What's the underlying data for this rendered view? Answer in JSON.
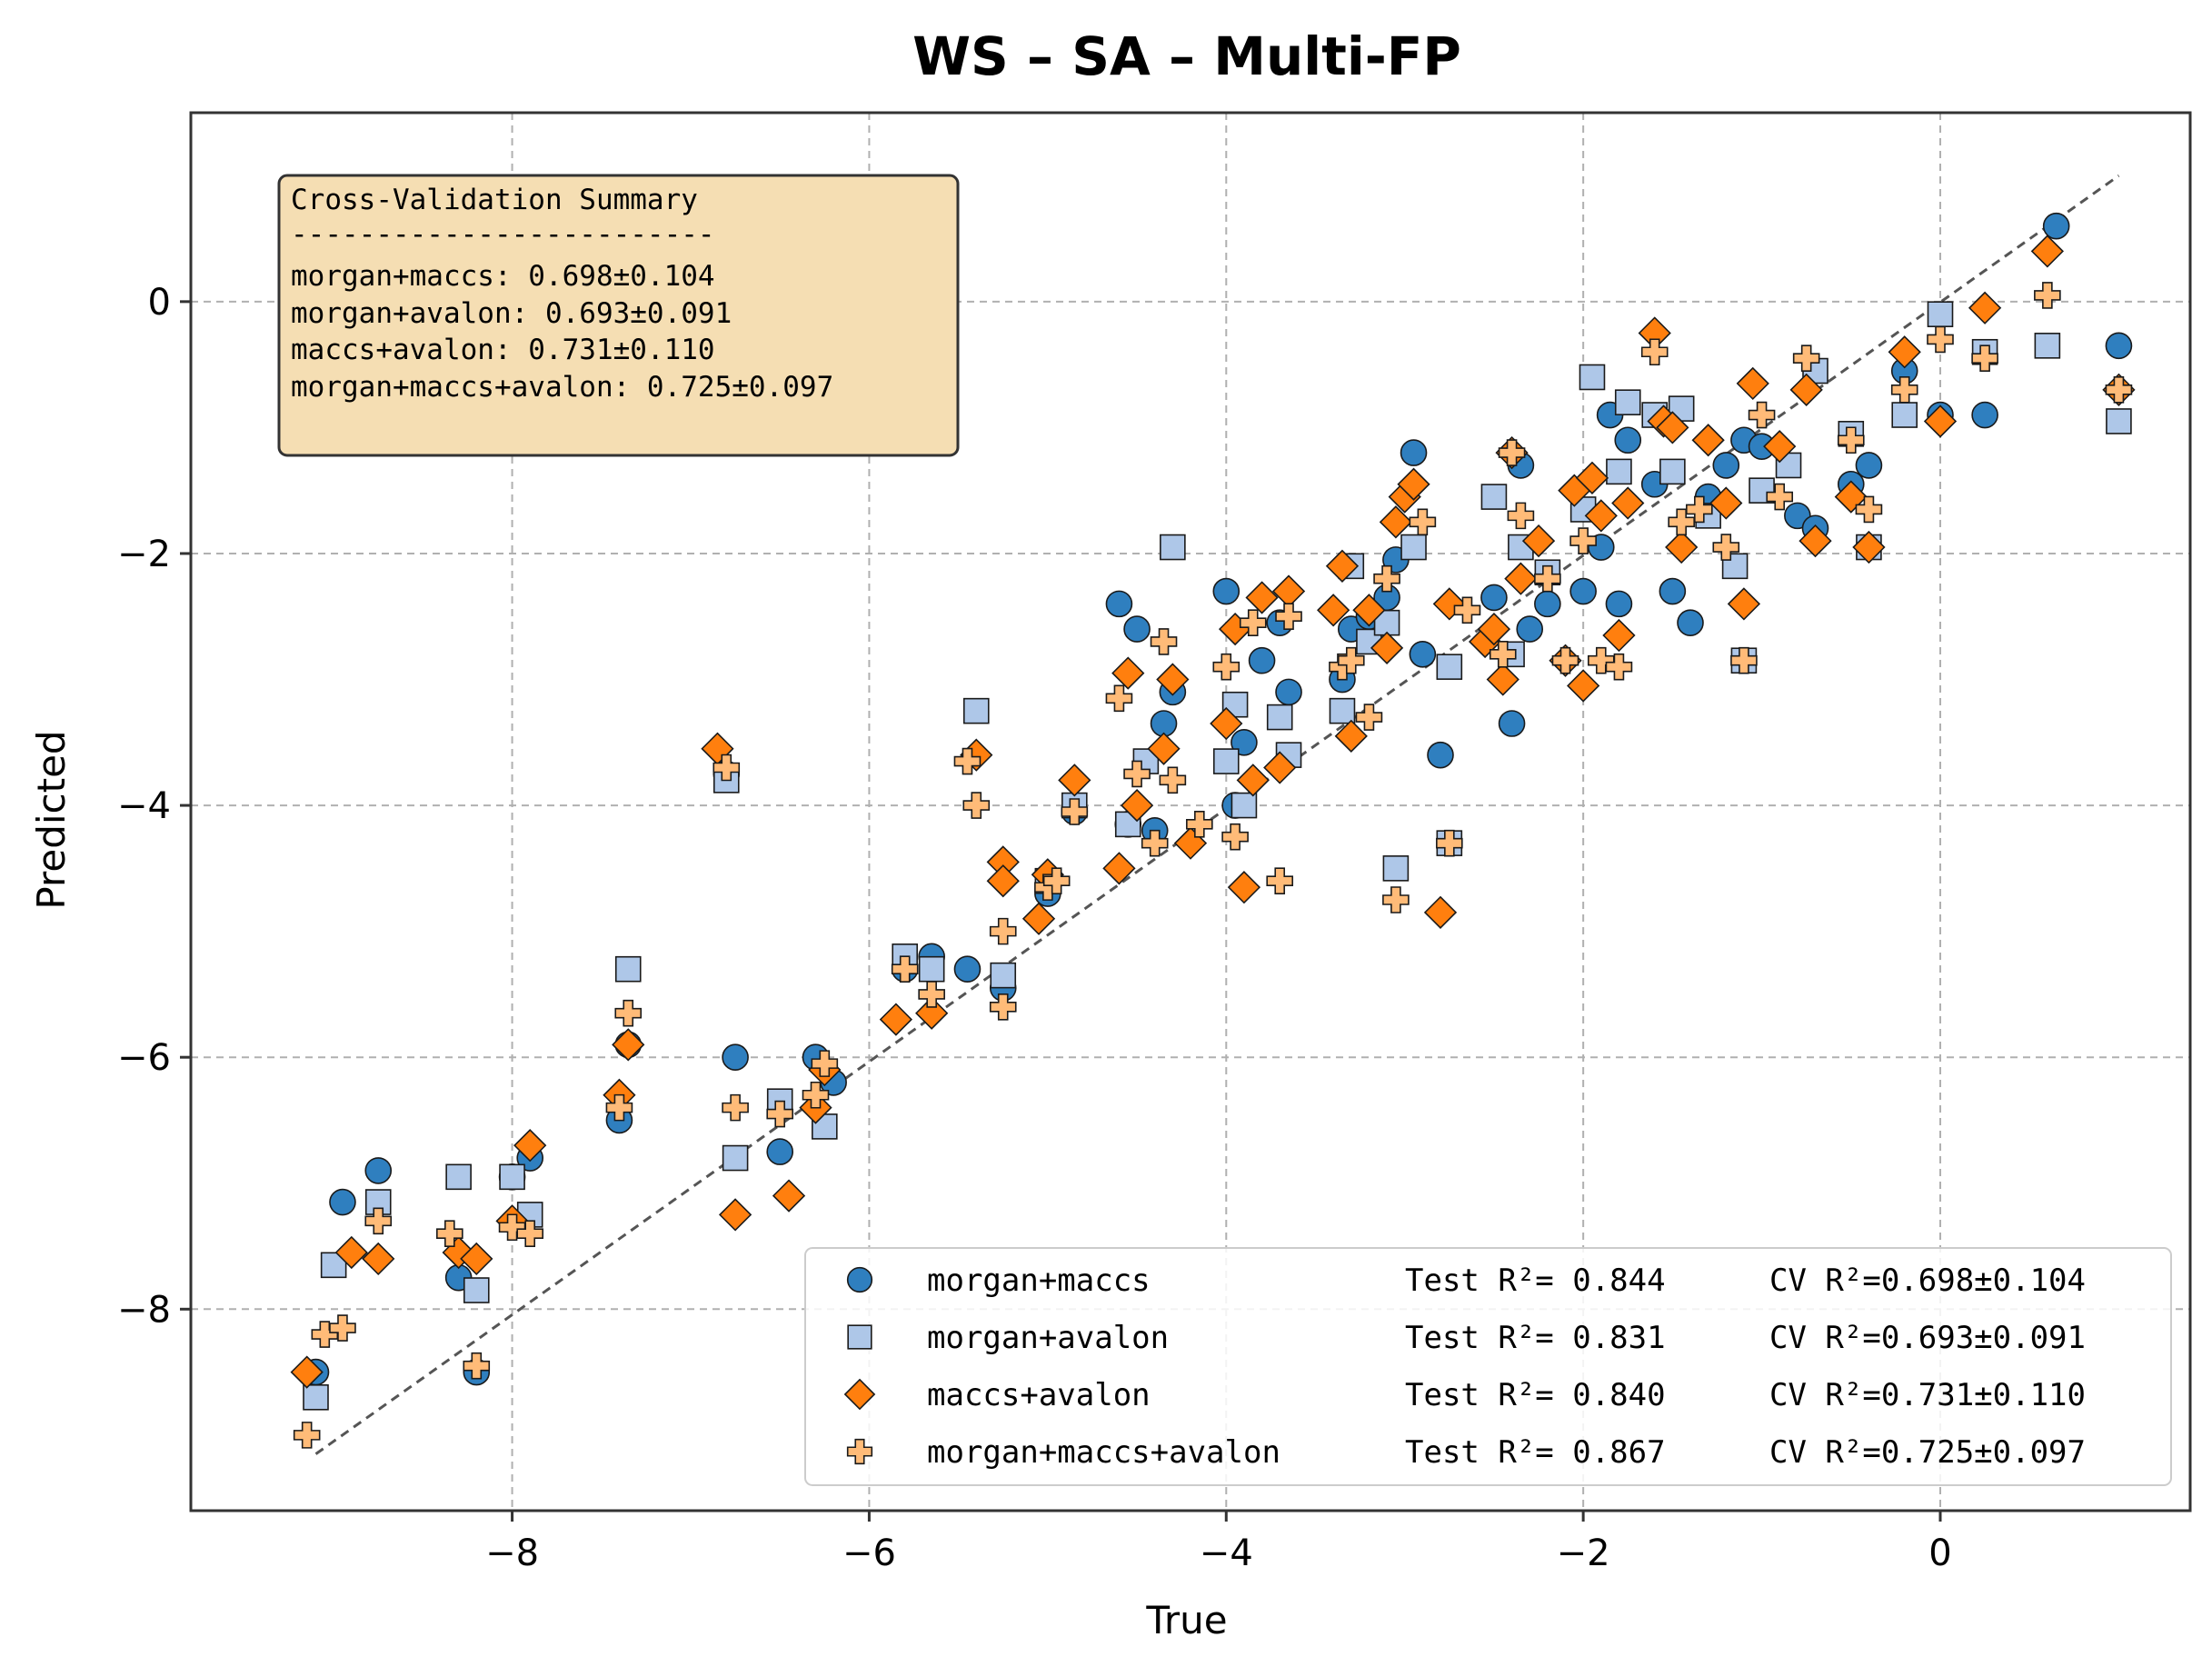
{
  "colors": {
    "morgan_maccs": "#2f7fbf",
    "morgan_avalon": "#aec7e8",
    "maccs_avalon": "#ff7f0e",
    "morgan_maccs_avalon": "#ffbb78",
    "cv_box": "#f5deb3"
  },
  "chart_data": {
    "type": "scatter",
    "title": "WS – SA – Multi-FP",
    "xlabel": "True",
    "ylabel": "Predicted",
    "xlim": [
      -9.8,
      1.4
    ],
    "ylim": [
      -9.6,
      1.5
    ],
    "xticks": [
      -8,
      -6,
      -4,
      -2,
      0
    ],
    "xtick_labels": [
      "−8",
      "−6",
      "−4",
      "−2",
      "0"
    ],
    "yticks": [
      -8,
      -6,
      -4,
      -2,
      0
    ],
    "ytick_labels": [
      "−8",
      "−6",
      "−4",
      "−2",
      "0"
    ],
    "grid": true,
    "identity_line": [
      [
        -9.1,
        -9.15
      ],
      [
        1.0,
        1.0
      ]
    ],
    "legend_position": "bottom-right",
    "cv_summary": {
      "title": "Cross-Validation Summary",
      "separator": "-------------------------",
      "lines": [
        "morgan+maccs: 0.698±0.104",
        "morgan+avalon: 0.693±0.091",
        "maccs+avalon: 0.731±0.110",
        "morgan+maccs+avalon: 0.725±0.097"
      ]
    },
    "series": [
      {
        "name": "morgan+maccs",
        "test_label": "Test R²= 0.844",
        "cv_label": "CV R²=0.698±0.104",
        "marker": "circle",
        "x": [
          -9.1,
          -8.95,
          -8.75,
          -8.3,
          -8.2,
          -8.0,
          -7.9,
          -7.4,
          -7.35,
          -6.8,
          -6.75,
          -6.5,
          -6.3,
          -6.2,
          -5.8,
          -5.65,
          -5.45,
          -5.25,
          -5.0,
          -4.85,
          -4.6,
          -4.55,
          -4.5,
          -4.4,
          -4.35,
          -4.3,
          -4.0,
          -3.95,
          -3.9,
          -3.8,
          -3.7,
          -3.65,
          -3.35,
          -3.3,
          -3.2,
          -3.1,
          -3.05,
          -2.95,
          -2.9,
          -2.8,
          -2.5,
          -2.4,
          -2.35,
          -2.3,
          -2.2,
          -2.0,
          -1.9,
          -1.85,
          -1.8,
          -1.75,
          -1.6,
          -1.5,
          -1.4,
          -1.3,
          -1.2,
          -1.1,
          -1.0,
          -0.8,
          -0.7,
          -0.5,
          -0.4,
          -0.2,
          0.0,
          0.25,
          0.65,
          1.0
        ],
        "y": [
          -8.5,
          -7.15,
          -6.9,
          -7.75,
          -8.5,
          -6.95,
          -6.8,
          -6.5,
          -5.9,
          -3.75,
          -6.0,
          -6.75,
          -6.0,
          -6.2,
          -5.3,
          -5.2,
          -5.3,
          -5.45,
          -4.7,
          -4.05,
          -2.4,
          -4.15,
          -2.6,
          -4.2,
          -3.35,
          -3.1,
          -2.3,
          -4.0,
          -3.5,
          -2.85,
          -2.55,
          -3.1,
          -3.0,
          -2.6,
          -2.5,
          -2.35,
          -2.05,
          -1.2,
          -2.8,
          -3.6,
          -2.35,
          -3.35,
          -1.3,
          -2.6,
          -2.4,
          -2.3,
          -1.95,
          -0.9,
          -2.4,
          -1.1,
          -1.45,
          -2.3,
          -2.55,
          -1.55,
          -1.3,
          -1.1,
          -1.15,
          -1.7,
          -1.8,
          -1.45,
          -1.3,
          -0.55,
          -0.9,
          -0.9,
          0.6,
          -0.35
        ]
      },
      {
        "name": "morgan+avalon",
        "test_label": "Test R²= 0.831",
        "cv_label": "CV R²=0.693±0.091",
        "marker": "square",
        "x": [
          -9.1,
          -9.0,
          -8.75,
          -8.3,
          -8.2,
          -8.0,
          -7.9,
          -7.35,
          -6.8,
          -6.75,
          -6.5,
          -6.25,
          -5.8,
          -5.65,
          -5.4,
          -5.25,
          -5.0,
          -4.85,
          -4.55,
          -4.45,
          -4.3,
          -4.0,
          -3.95,
          -3.9,
          -3.7,
          -3.65,
          -3.35,
          -3.3,
          -3.2,
          -3.1,
          -3.05,
          -2.95,
          -2.75,
          -2.75,
          -2.5,
          -2.4,
          -2.35,
          -2.2,
          -2.0,
          -1.95,
          -1.8,
          -1.75,
          -1.6,
          -1.5,
          -1.45,
          -1.3,
          -1.15,
          -1.1,
          -1.0,
          -0.85,
          -0.7,
          -0.5,
          -0.4,
          -0.2,
          0.0,
          0.25,
          0.6,
          1.0
        ],
        "y": [
          -8.7,
          -7.65,
          -7.15,
          -6.95,
          -7.85,
          -6.95,
          -7.25,
          -5.3,
          -3.8,
          -6.8,
          -6.35,
          -6.55,
          -5.2,
          -5.3,
          -3.25,
          -5.35,
          -4.6,
          -4.0,
          -4.15,
          -3.65,
          -1.95,
          -3.65,
          -3.2,
          -4.0,
          -3.3,
          -3.6,
          -3.25,
          -2.1,
          -2.7,
          -2.55,
          -4.5,
          -1.95,
          -2.9,
          -4.3,
          -1.55,
          -2.8,
          -1.95,
          -2.15,
          -1.65,
          -0.6,
          -1.35,
          -0.8,
          -0.9,
          -1.35,
          -0.85,
          -1.7,
          -2.1,
          -2.85,
          -1.5,
          -1.3,
          -0.55,
          -1.05,
          -1.95,
          -0.9,
          -0.1,
          -0.4,
          -0.35,
          -0.95
        ]
      },
      {
        "name": "maccs+avalon",
        "test_label": "Test R²= 0.840",
        "cv_label": "CV R²=0.731±0.110",
        "marker": "diamond",
        "x": [
          -9.15,
          -8.9,
          -8.75,
          -8.3,
          -8.2,
          -8.0,
          -7.9,
          -7.4,
          -7.35,
          -6.85,
          -6.75,
          -6.45,
          -6.3,
          -6.25,
          -5.85,
          -5.65,
          -5.4,
          -5.25,
          -5.25,
          -5.05,
          -5.0,
          -4.85,
          -4.6,
          -4.55,
          -4.5,
          -4.35,
          -4.3,
          -4.2,
          -4.0,
          -3.95,
          -3.9,
          -3.85,
          -3.8,
          -3.7,
          -3.65,
          -3.4,
          -3.35,
          -3.3,
          -3.2,
          -3.1,
          -3.05,
          -3.0,
          -2.95,
          -2.8,
          -2.75,
          -2.55,
          -2.5,
          -2.45,
          -2.4,
          -2.35,
          -2.25,
          -2.1,
          -2.05,
          -2.0,
          -1.95,
          -1.9,
          -1.8,
          -1.75,
          -1.6,
          -1.55,
          -1.5,
          -1.45,
          -1.3,
          -1.2,
          -1.1,
          -1.05,
          -0.9,
          -0.75,
          -0.7,
          -0.5,
          -0.4,
          -0.2,
          0.0,
          0.25,
          0.6,
          1.0
        ],
        "y": [
          -8.5,
          -7.55,
          -7.6,
          -7.55,
          -7.6,
          -7.3,
          -6.7,
          -6.3,
          -5.9,
          -3.55,
          -7.25,
          -7.1,
          -6.4,
          -6.1,
          -5.7,
          -5.65,
          -3.6,
          -4.45,
          -4.6,
          -4.9,
          -4.55,
          -3.8,
          -4.5,
          -2.95,
          -4.0,
          -3.55,
          -3.0,
          -4.3,
          -3.35,
          -2.6,
          -4.65,
          -3.8,
          -2.35,
          -3.7,
          -2.3,
          -2.45,
          -2.1,
          -3.45,
          -2.45,
          -2.75,
          -1.75,
          -1.55,
          -1.45,
          -4.85,
          -2.4,
          -2.7,
          -2.6,
          -3.0,
          -1.2,
          -2.2,
          -1.9,
          -2.85,
          -1.5,
          -3.05,
          -1.4,
          -1.7,
          -2.65,
          -1.6,
          -0.25,
          -0.95,
          -1.0,
          -1.95,
          -1.1,
          -1.6,
          -2.4,
          -0.65,
          -1.15,
          -0.7,
          -1.9,
          -1.55,
          -1.95,
          -0.4,
          -0.95,
          -0.05,
          0.4,
          -0.7
        ]
      },
      {
        "name": "morgan+maccs+avalon",
        "test_label": "Test R²= 0.867",
        "cv_label": "CV R²=0.725±0.097",
        "marker": "plus",
        "x": [
          -9.15,
          -9.05,
          -8.95,
          -8.75,
          -8.35,
          -8.2,
          -8.0,
          -7.9,
          -7.4,
          -7.35,
          -6.8,
          -6.75,
          -6.5,
          -6.3,
          -6.25,
          -5.8,
          -5.65,
          -5.45,
          -5.4,
          -5.25,
          -5.25,
          -5.0,
          -4.95,
          -4.85,
          -4.6,
          -4.5,
          -4.4,
          -4.35,
          -4.3,
          -4.15,
          -4.0,
          -3.95,
          -3.85,
          -3.7,
          -3.65,
          -3.35,
          -3.3,
          -3.2,
          -3.1,
          -3.05,
          -2.9,
          -2.75,
          -2.65,
          -2.45,
          -2.4,
          -2.35,
          -2.2,
          -2.1,
          -2.0,
          -1.9,
          -1.8,
          -1.6,
          -1.45,
          -1.35,
          -1.2,
          -1.1,
          -1.0,
          -0.9,
          -0.75,
          -0.5,
          -0.4,
          -0.2,
          0.0,
          0.25,
          0.6,
          1.0
        ],
        "y": [
          -9.0,
          -8.2,
          -8.15,
          -7.3,
          -7.4,
          -8.45,
          -7.35,
          -7.4,
          -6.4,
          -5.65,
          -3.7,
          -6.4,
          -6.45,
          -6.3,
          -6.05,
          -5.3,
          -5.5,
          -3.65,
          -4.0,
          -5.0,
          -5.6,
          -4.65,
          -4.6,
          -4.05,
          -3.15,
          -3.75,
          -4.3,
          -2.7,
          -3.8,
          -4.15,
          -2.9,
          -4.25,
          -2.55,
          -4.6,
          -2.5,
          -2.9,
          -2.85,
          -3.3,
          -2.2,
          -4.75,
          -1.75,
          -4.3,
          -2.45,
          -2.8,
          -1.2,
          -1.7,
          -2.2,
          -2.85,
          -1.9,
          -2.85,
          -2.9,
          -0.4,
          -1.75,
          -1.65,
          -1.95,
          -2.85,
          -0.9,
          -1.55,
          -0.45,
          -1.1,
          -1.65,
          -0.7,
          -0.3,
          -0.45,
          0.05,
          -0.7
        ]
      }
    ]
  }
}
